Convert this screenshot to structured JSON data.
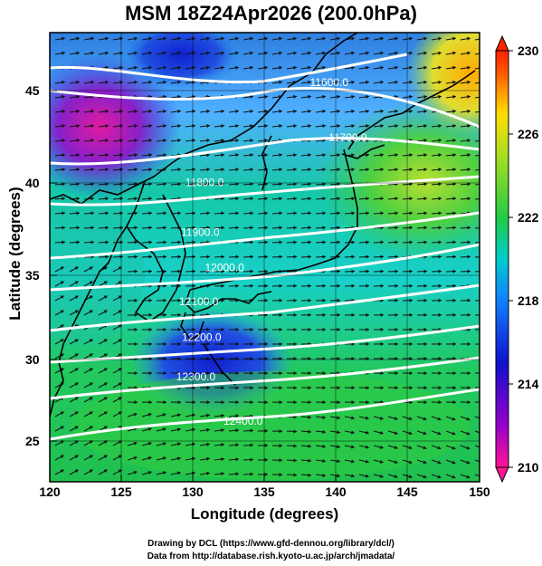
{
  "title": "MSM 18Z24Apr2026 (200.0hPa)",
  "xlabel": "Longitude (degrees)",
  "ylabel": "Latitude  (degrees)",
  "credits": [
    "Drawing by DCL (https://www.gfd-dennou.org/library/dcl/)",
    "Data from http://database.rish.kyoto-u.ac.jp/arch/jmadata/"
  ],
  "chart_data": {
    "type": "heatmap",
    "x_range": [
      120,
      150
    ],
    "y_range": [
      22.4,
      47.6
    ],
    "x_ticks": [
      "120",
      "125",
      "130",
      "135",
      "140",
      "145",
      "150"
    ],
    "y_ticks": [
      "25",
      "30",
      "35",
      "40",
      "45"
    ],
    "colorbar": {
      "range": [
        210,
        230
      ],
      "ticks": [
        "210",
        "214",
        "218",
        "222",
        "226",
        "230"
      ],
      "colors": [
        "#ff1493",
        "#9900cc",
        "#0000cc",
        "#00aaff",
        "#00cc99",
        "#22cc22",
        "#ccee22",
        "#ff8800",
        "#ff2200"
      ]
    },
    "contours": [
      {
        "label": "11600.0",
        "lon": 139.5,
        "lat": 44.6
      },
      {
        "label": "11700.0",
        "lon": 140.8,
        "lat": 41.5
      },
      {
        "label": "11800.0",
        "lon": 130.8,
        "lat": 39.0
      },
      {
        "label": "11900.0",
        "lon": 130.5,
        "lat": 36.2
      },
      {
        "label": "12000.0",
        "lon": 132.2,
        "lat": 34.2
      },
      {
        "label": "12100.0",
        "lon": 130.4,
        "lat": 32.3
      },
      {
        "label": "12200.0",
        "lon": 130.6,
        "lat": 30.3
      },
      {
        "label": "12300.0",
        "lon": 130.2,
        "lat": 28.1
      },
      {
        "label": "12400.0",
        "lon": 133.5,
        "lat": 25.6
      }
    ],
    "wind_vectors": "shown",
    "grid": true
  }
}
